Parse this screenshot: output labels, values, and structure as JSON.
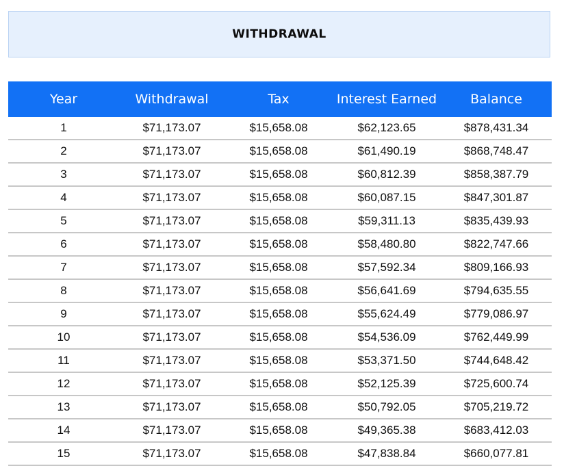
{
  "title": "WITHDRAWAL",
  "table": {
    "headers": [
      "Year",
      "Withdrawal",
      "Tax",
      "Interest Earned",
      "Balance"
    ],
    "rows": [
      [
        "1",
        "$71,173.07",
        "$15,658.08",
        "$62,123.65",
        "$878,431.34"
      ],
      [
        "2",
        "$71,173.07",
        "$15,658.08",
        "$61,490.19",
        "$868,748.47"
      ],
      [
        "3",
        "$71,173.07",
        "$15,658.08",
        "$60,812.39",
        "$858,387.79"
      ],
      [
        "4",
        "$71,173.07",
        "$15,658.08",
        "$60,087.15",
        "$847,301.87"
      ],
      [
        "5",
        "$71,173.07",
        "$15,658.08",
        "$59,311.13",
        "$835,439.93"
      ],
      [
        "6",
        "$71,173.07",
        "$15,658.08",
        "$58,480.80",
        "$822,747.66"
      ],
      [
        "7",
        "$71,173.07",
        "$15,658.08",
        "$57,592.34",
        "$809,166.93"
      ],
      [
        "8",
        "$71,173.07",
        "$15,658.08",
        "$56,641.69",
        "$794,635.55"
      ],
      [
        "9",
        "$71,173.07",
        "$15,658.08",
        "$55,624.49",
        "$779,086.97"
      ],
      [
        "10",
        "$71,173.07",
        "$15,658.08",
        "$54,536.09",
        "$762,449.99"
      ],
      [
        "11",
        "$71,173.07",
        "$15,658.08",
        "$53,371.50",
        "$744,648.42"
      ],
      [
        "12",
        "$71,173.07",
        "$15,658.08",
        "$52,125.39",
        "$725,600.74"
      ],
      [
        "13",
        "$71,173.07",
        "$15,658.08",
        "$50,792.05",
        "$705,219.72"
      ],
      [
        "14",
        "$71,173.07",
        "$15,658.08",
        "$49,365.38",
        "$683,412.03"
      ],
      [
        "15",
        "$71,173.07",
        "$15,658.08",
        "$47,838.84",
        "$660,077.81"
      ]
    ]
  },
  "colors": {
    "header_bg": "#1271f5",
    "title_bg": "#e6f0fd",
    "row_border": "#c7c7c7"
  }
}
